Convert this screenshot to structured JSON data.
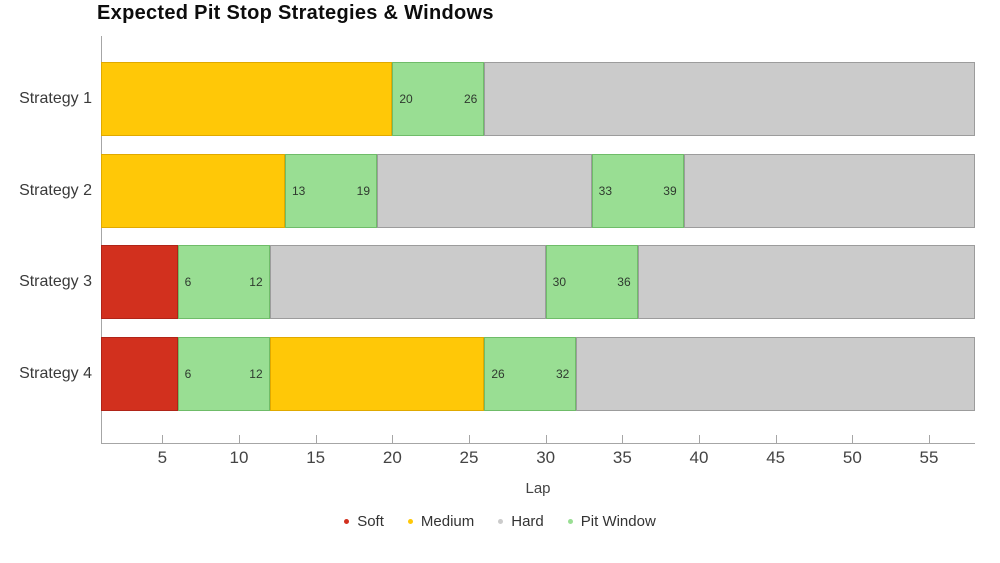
{
  "title": "Expected Pit Stop Strategies & Windows",
  "chart_data": {
    "type": "bar",
    "orientation": "horizontal",
    "title": "Expected Pit Stop Strategies & Windows",
    "xlabel": "Lap",
    "x_range": [
      1,
      58
    ],
    "x_ticks": [
      5,
      10,
      15,
      20,
      25,
      30,
      35,
      40,
      45,
      50,
      55
    ],
    "grid": false,
    "legend_position": "bottom-center",
    "legend": [
      "Soft",
      "Medium",
      "Hard",
      "Pit Window"
    ],
    "colors": {
      "Soft": {
        "fill": "#d2301e",
        "border": "#b02418"
      },
      "Medium": {
        "fill": "#ffc807",
        "border": "#e0a900"
      },
      "Hard": {
        "fill": "#cbcbcb",
        "border": "#9c9c9c"
      },
      "Pit Window": {
        "fill": "#99de93",
        "border": "#6fbc69"
      }
    },
    "categories": [
      "Strategy 1",
      "Strategy 2",
      "Strategy 3",
      "Strategy 4"
    ],
    "strategies": [
      {
        "name": "Strategy 1",
        "segments": [
          {
            "compound": "Medium",
            "start": 1,
            "end": 20
          },
          {
            "compound": "Pit Window",
            "start": 20,
            "end": 26,
            "labels": [
              "20",
              "26"
            ]
          },
          {
            "compound": "Hard",
            "start": 26,
            "end": 58
          }
        ]
      },
      {
        "name": "Strategy 2",
        "segments": [
          {
            "compound": "Medium",
            "start": 1,
            "end": 13
          },
          {
            "compound": "Pit Window",
            "start": 13,
            "end": 19,
            "labels": [
              "13",
              "19"
            ]
          },
          {
            "compound": "Hard",
            "start": 19,
            "end": 33
          },
          {
            "compound": "Pit Window",
            "start": 33,
            "end": 39,
            "labels": [
              "33",
              "39"
            ]
          },
          {
            "compound": "Hard",
            "start": 39,
            "end": 58
          }
        ]
      },
      {
        "name": "Strategy 3",
        "segments": [
          {
            "compound": "Soft",
            "start": 1,
            "end": 6
          },
          {
            "compound": "Pit Window",
            "start": 6,
            "end": 12,
            "labels": [
              "6",
              "12"
            ]
          },
          {
            "compound": "Hard",
            "start": 12,
            "end": 30
          },
          {
            "compound": "Pit Window",
            "start": 30,
            "end": 36,
            "labels": [
              "30",
              "36"
            ]
          },
          {
            "compound": "Hard",
            "start": 36,
            "end": 58
          }
        ]
      },
      {
        "name": "Strategy 4",
        "segments": [
          {
            "compound": "Soft",
            "start": 1,
            "end": 6
          },
          {
            "compound": "Pit Window",
            "start": 6,
            "end": 12,
            "labels": [
              "6",
              "12"
            ]
          },
          {
            "compound": "Medium",
            "start": 12,
            "end": 26
          },
          {
            "compound": "Pit Window",
            "start": 26,
            "end": 32,
            "labels": [
              "26",
              "32"
            ]
          },
          {
            "compound": "Hard",
            "start": 32,
            "end": 58
          }
        ]
      }
    ]
  }
}
